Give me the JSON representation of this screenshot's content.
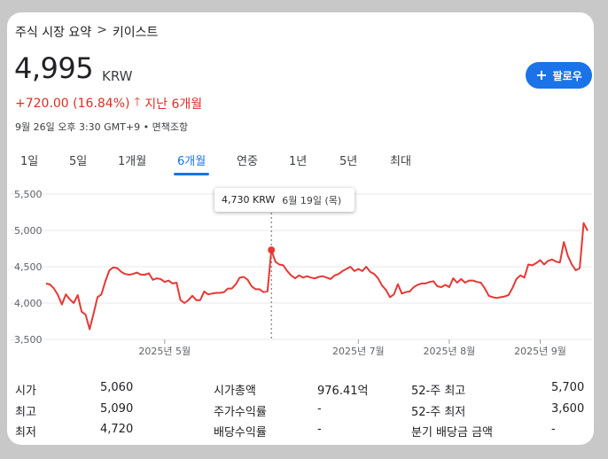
{
  "breadcrumb": {
    "parent": "주식 시장 요약",
    "separator": ">",
    "current": "키이스트"
  },
  "quote": {
    "price": "4,995",
    "currency": "KRW",
    "change": "+720.00 (16.84%)",
    "change_period": "지난 6개월",
    "timestamp": "9월 26일 오후 3:30 GMT+9 • 면책조항"
  },
  "follow_button": {
    "label": "팔로우"
  },
  "tabs": [
    {
      "label": "1일"
    },
    {
      "label": "5일"
    },
    {
      "label": "1개월"
    },
    {
      "label": "6개월"
    },
    {
      "label": "연중"
    },
    {
      "label": "1년"
    },
    {
      "label": "5년"
    },
    {
      "label": "최대"
    }
  ],
  "active_tab": "6개월",
  "tooltip": {
    "value": "4,730 KRW",
    "date": "6월 19일 (목)"
  },
  "chart_data": {
    "type": "line",
    "line_color": "#e53935",
    "ylim": [
      3500,
      5500
    ],
    "yticks": [
      "5,500",
      "5,000",
      "4,500",
      "4,000",
      "3,500"
    ],
    "xticks": [
      {
        "label": "2025년 5월",
        "x": 34
      },
      {
        "label": "2025년 7월",
        "x": 95
      },
      {
        "label": "2025년 8월",
        "x": 125
      },
      {
        "label": "2025년 9월",
        "x": 156
      }
    ],
    "x_range": [
      0,
      185
    ],
    "highlight": {
      "x": 82,
      "y": 4730
    },
    "series": [
      {
        "values": [
          [
            0,
            4270
          ],
          [
            1,
            4255
          ],
          [
            2,
            4200
          ],
          [
            3,
            4110
          ],
          [
            4,
            3980
          ],
          [
            5,
            4120
          ],
          [
            6,
            4050
          ],
          [
            7,
            4000
          ],
          [
            8,
            4110
          ],
          [
            9,
            3880
          ],
          [
            10,
            3840
          ],
          [
            11,
            3640
          ],
          [
            12,
            3850
          ],
          [
            13,
            4080
          ],
          [
            14,
            4120
          ],
          [
            15,
            4300
          ],
          [
            16,
            4450
          ],
          [
            17,
            4490
          ],
          [
            18,
            4480
          ],
          [
            19,
            4430
          ],
          [
            20,
            4400
          ],
          [
            21,
            4390
          ],
          [
            22,
            4400
          ],
          [
            23,
            4420
          ],
          [
            24,
            4390
          ],
          [
            25,
            4390
          ],
          [
            26,
            4410
          ],
          [
            27,
            4320
          ],
          [
            28,
            4340
          ],
          [
            29,
            4330
          ],
          [
            30,
            4290
          ],
          [
            31,
            4310
          ],
          [
            32,
            4270
          ],
          [
            33,
            4280
          ],
          [
            34,
            4040
          ],
          [
            35,
            4000
          ],
          [
            36,
            4040
          ],
          [
            37,
            4100
          ],
          [
            38,
            4040
          ],
          [
            39,
            4040
          ],
          [
            40,
            4160
          ],
          [
            41,
            4120
          ],
          [
            42,
            4130
          ],
          [
            43,
            4140
          ],
          [
            44,
            4140
          ],
          [
            45,
            4150
          ],
          [
            46,
            4200
          ],
          [
            47,
            4200
          ],
          [
            48,
            4260
          ],
          [
            49,
            4350
          ],
          [
            50,
            4360
          ],
          [
            51,
            4320
          ],
          [
            52,
            4230
          ],
          [
            53,
            4190
          ],
          [
            54,
            4190
          ],
          [
            55,
            4150
          ],
          [
            56,
            4160
          ],
          [
            57,
            4730
          ],
          [
            58,
            4570
          ],
          [
            59,
            4530
          ],
          [
            60,
            4520
          ],
          [
            61,
            4440
          ],
          [
            62,
            4380
          ],
          [
            63,
            4340
          ],
          [
            64,
            4380
          ],
          [
            65,
            4350
          ],
          [
            66,
            4370
          ],
          [
            67,
            4350
          ],
          [
            68,
            4340
          ],
          [
            69,
            4360
          ],
          [
            70,
            4370
          ],
          [
            71,
            4350
          ],
          [
            72,
            4330
          ],
          [
            73,
            4380
          ],
          [
            74,
            4400
          ],
          [
            75,
            4440
          ],
          [
            76,
            4470
          ],
          [
            77,
            4500
          ],
          [
            78,
            4440
          ],
          [
            79,
            4470
          ],
          [
            80,
            4440
          ],
          [
            81,
            4500
          ],
          [
            82,
            4430
          ],
          [
            83,
            4400
          ],
          [
            84,
            4340
          ],
          [
            85,
            4240
          ],
          [
            86,
            4180
          ],
          [
            87,
            4080
          ],
          [
            88,
            4120
          ],
          [
            89,
            4260
          ],
          [
            90,
            4130
          ],
          [
            91,
            4150
          ],
          [
            92,
            4160
          ],
          [
            93,
            4220
          ],
          [
            94,
            4250
          ],
          [
            95,
            4270
          ],
          [
            96,
            4270
          ],
          [
            97,
            4290
          ],
          [
            98,
            4300
          ],
          [
            99,
            4230
          ],
          [
            100,
            4220
          ],
          [
            101,
            4250
          ],
          [
            102,
            4220
          ],
          [
            103,
            4340
          ],
          [
            104,
            4280
          ],
          [
            105,
            4330
          ],
          [
            106,
            4280
          ],
          [
            107,
            4310
          ],
          [
            108,
            4310
          ],
          [
            109,
            4290
          ],
          [
            110,
            4280
          ],
          [
            111,
            4200
          ],
          [
            112,
            4100
          ],
          [
            113,
            4080
          ],
          [
            114,
            4070
          ],
          [
            115,
            4080
          ],
          [
            116,
            4090
          ],
          [
            117,
            4110
          ],
          [
            118,
            4210
          ],
          [
            119,
            4330
          ],
          [
            120,
            4380
          ],
          [
            121,
            4350
          ],
          [
            122,
            4530
          ],
          [
            123,
            4520
          ],
          [
            124,
            4550
          ],
          [
            125,
            4590
          ],
          [
            126,
            4530
          ],
          [
            127,
            4580
          ],
          [
            128,
            4600
          ],
          [
            129,
            4570
          ],
          [
            130,
            4560
          ],
          [
            131,
            4840
          ],
          [
            132,
            4650
          ],
          [
            133,
            4530
          ],
          [
            134,
            4450
          ],
          [
            135,
            4480
          ],
          [
            136,
            5100
          ],
          [
            137,
            4995
          ]
        ]
      }
    ]
  },
  "stats": [
    [
      {
        "label": "시가",
        "value": "5,060"
      },
      {
        "label": "최고",
        "value": "5,090"
      },
      {
        "label": "최저",
        "value": "4,720"
      }
    ],
    [
      {
        "label": "시가총액",
        "value": "976.41억"
      },
      {
        "label": "주가수익률",
        "value": "-"
      },
      {
        "label": "배당수익률",
        "value": "-"
      }
    ],
    [
      {
        "label": "52-주 최고",
        "value": "5,700"
      },
      {
        "label": "52-주 최저",
        "value": "3,600"
      },
      {
        "label": "분기 배당금 금액",
        "value": "-"
      }
    ]
  ]
}
